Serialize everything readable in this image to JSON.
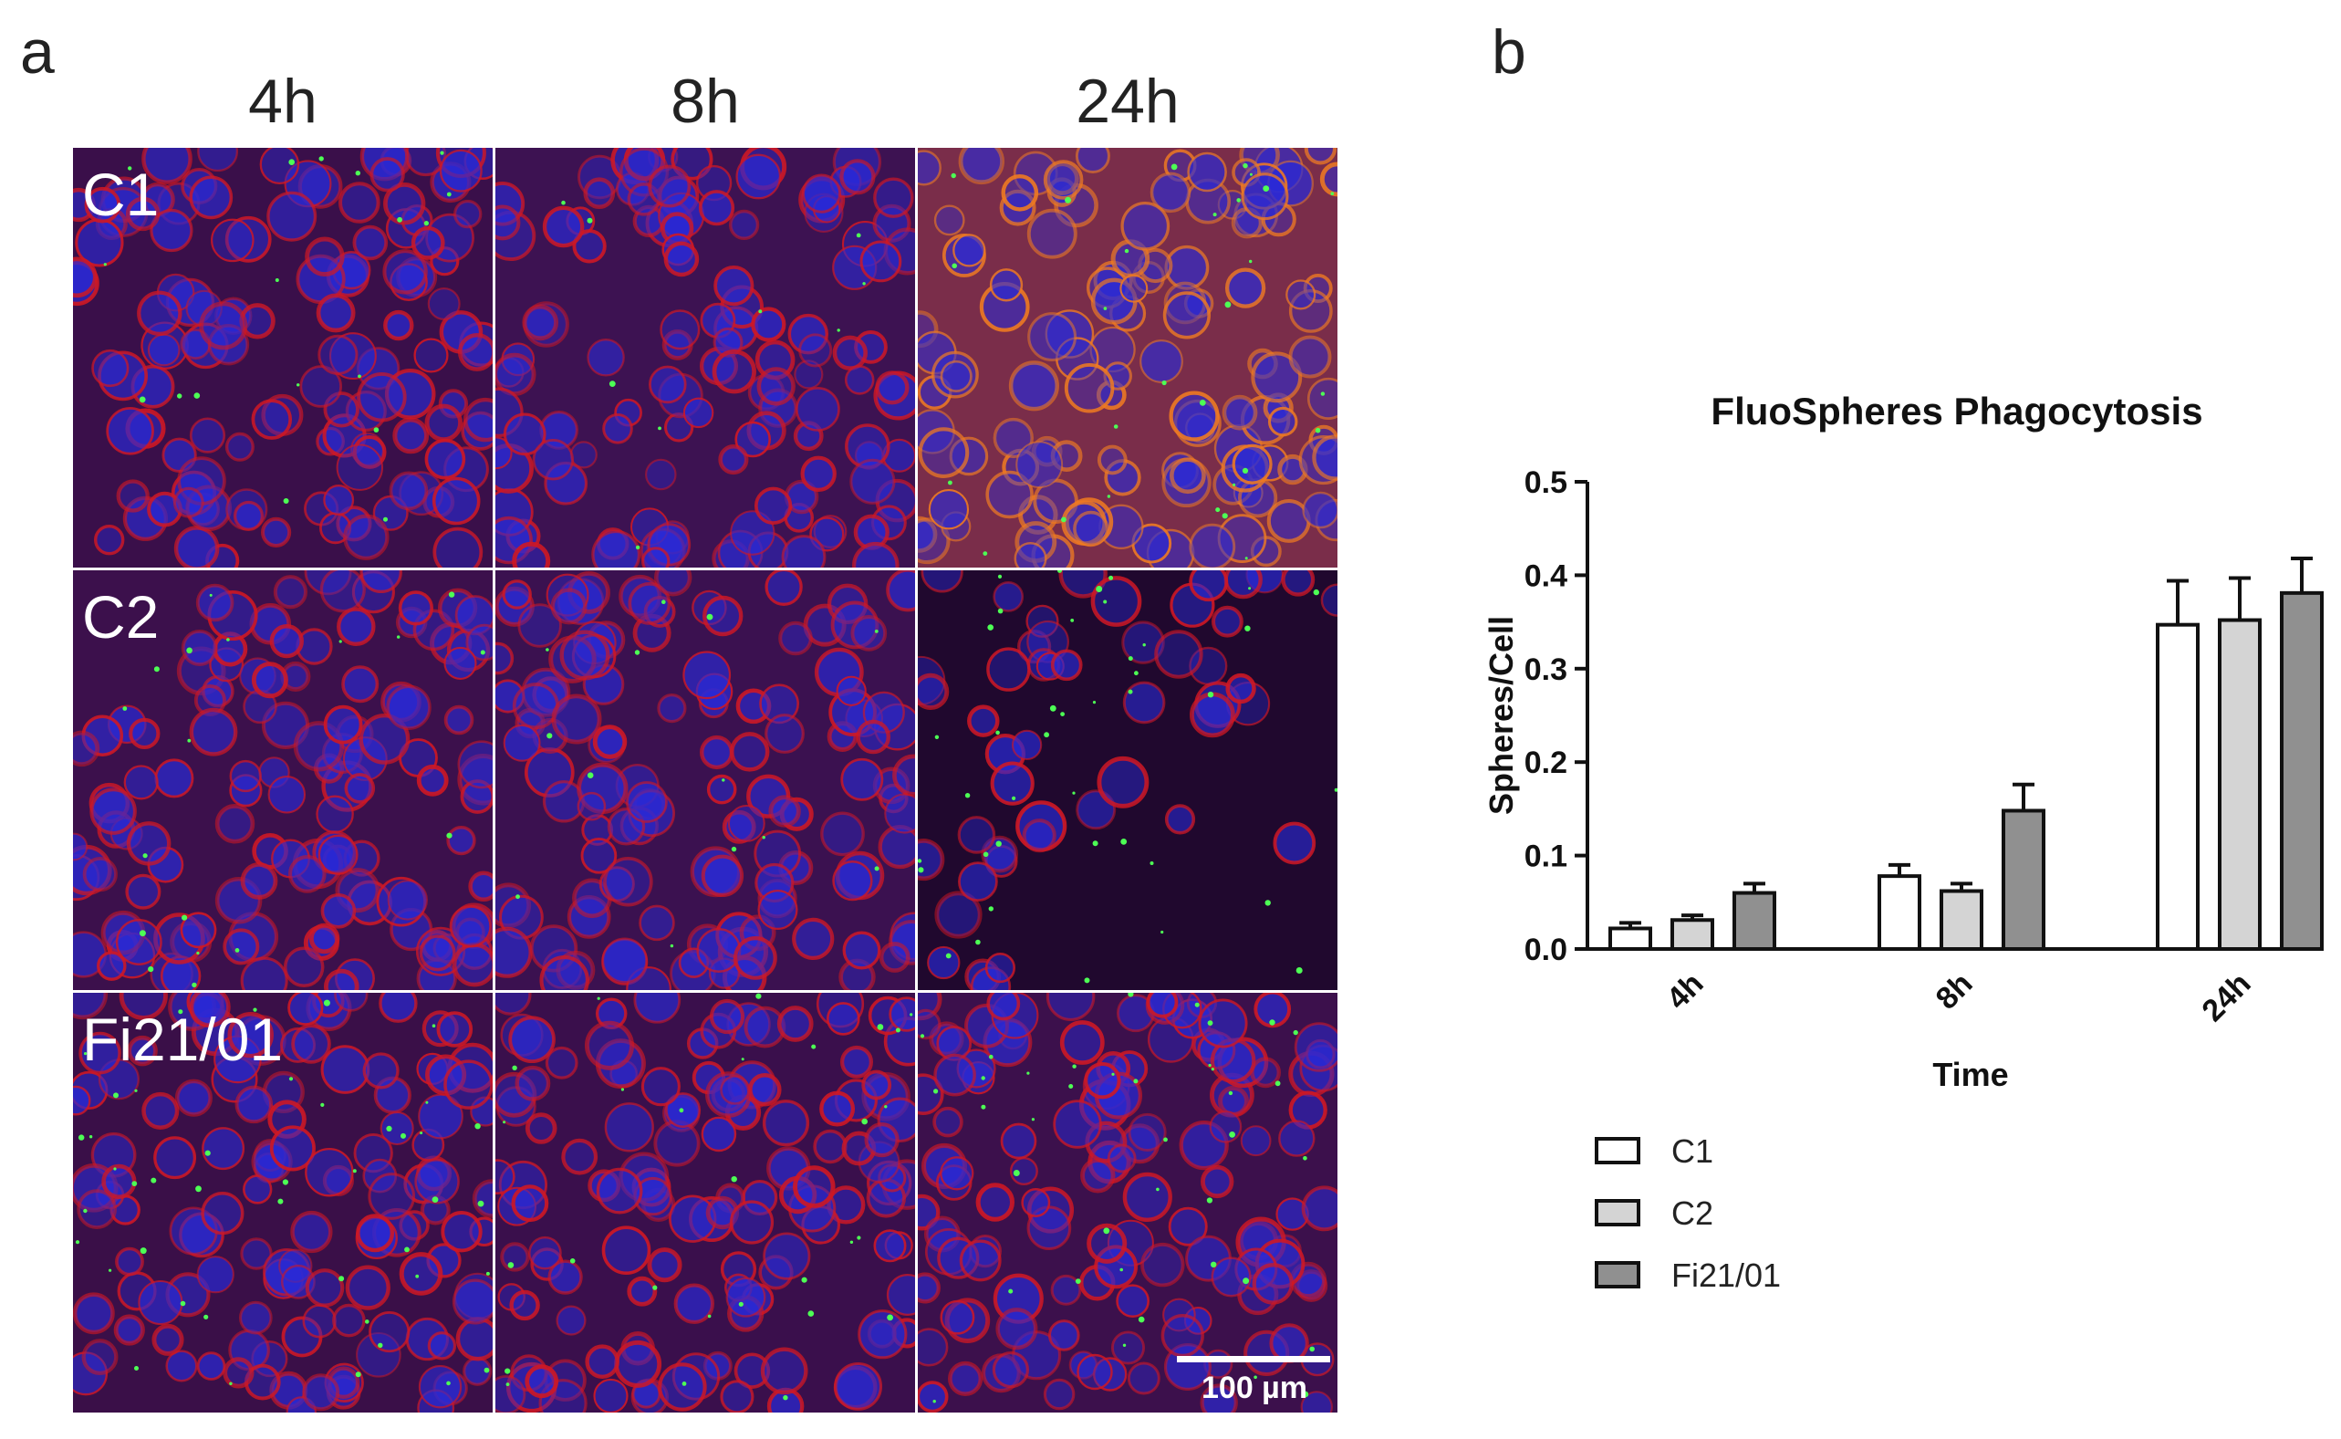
{
  "panel_a": {
    "letter": "a",
    "columns": [
      "4h",
      "8h",
      "24h"
    ],
    "rows": [
      "C1",
      "C2",
      "Fi21/01"
    ],
    "scale_bar_label": "100 µm"
  },
  "panel_b": {
    "letter": "b"
  },
  "chart_data": {
    "type": "bar",
    "title": "FluoSpheres Phagocytosis",
    "xlabel": "Time",
    "ylabel": "Spheres/Cell",
    "categories": [
      "4h",
      "8h",
      "24h"
    ],
    "ylim": [
      0,
      0.5
    ],
    "yticks": [
      "0.0",
      "0.1",
      "0.2",
      "0.3",
      "0.4",
      "0.5"
    ],
    "legend_position": "bottom-left",
    "series": [
      {
        "name": "C1",
        "color": "#ffffff",
        "values": [
          0.022,
          0.078,
          0.347
        ],
        "errors": [
          0.006,
          0.012,
          0.047
        ]
      },
      {
        "name": "C2",
        "color": "#d4d4d4",
        "values": [
          0.031,
          0.062,
          0.352
        ],
        "errors": [
          0.005,
          0.008,
          0.045
        ]
      },
      {
        "name": "Fi21/01",
        "color": "#909090",
        "values": [
          0.06,
          0.148,
          0.381
        ],
        "errors": [
          0.01,
          0.028,
          0.037
        ]
      }
    ]
  },
  "image_colors": {
    "membrane": "#d01822",
    "nuclei": "#2a2ad8",
    "spheres": "#4dff55",
    "orange_tint": "#f07a20"
  }
}
